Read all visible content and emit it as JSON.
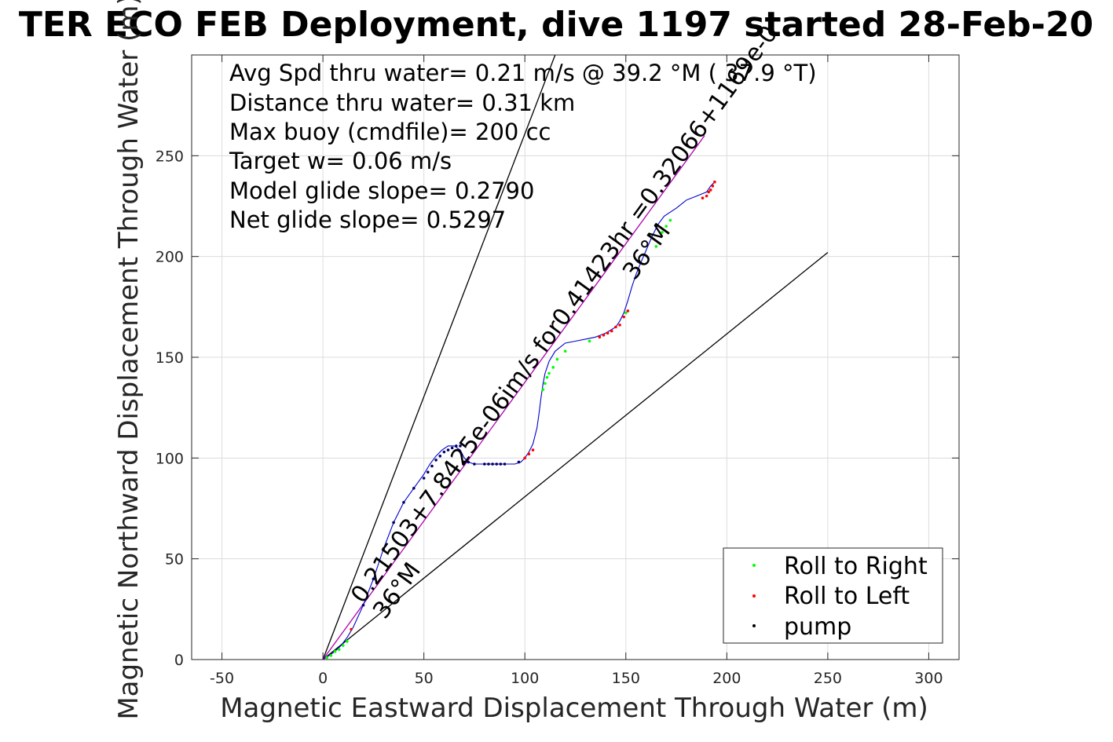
{
  "chart_data": {
    "type": "scatter",
    "title": "TER ECO FEB Deployment, dive 1197 started 28-Feb-20",
    "xlabel": "Magnetic Eastward Displacement Through Water (m)",
    "ylabel": "Magnetic Northward Displacement Through Water (m)",
    "xlim": [
      -65,
      315
    ],
    "ylim": [
      0,
      300
    ],
    "xticks": [
      -50,
      0,
      50,
      100,
      150,
      200,
      250,
      300
    ],
    "yticks": [
      0,
      50,
      100,
      150,
      200,
      250
    ],
    "grid": true,
    "legend_placement": "bottom-right",
    "legend": [
      {
        "label": "Roll to Right",
        "color": "#00ff00"
      },
      {
        "label": "Roll to Left",
        "color": "#ff0000"
      },
      {
        "label": "pump",
        "color": "#000000"
      }
    ],
    "stats": [
      "Avg Spd thru water=  0.21 m/s @  39.2 °M ( 37.9 °T)",
      "Distance thru water=  0.31 km",
      "Max buoy (cmdfile)= 200 cc",
      "Target w= 0.06 m/s",
      "Model glide slope= 0.2790",
      "Net glide slope= 0.5297"
    ],
    "annotations": {
      "start_heading": "36°M",
      "start_speed": "0.21503+7.8425e-06im/s for0.41423hr =0.32066+1169e-0",
      "end_heading": "36°M"
    },
    "reference_lines": [
      {
        "name": "upper",
        "x": [
          0,
          115
        ],
        "y": [
          0,
          300
        ],
        "color": "#000000"
      },
      {
        "name": "lower",
        "x": [
          0,
          250
        ],
        "y": [
          0,
          202
        ],
        "color": "#000000"
      },
      {
        "name": "average",
        "x": [
          0,
          189
        ],
        "y": [
          0,
          260
        ],
        "color": "#b000b0"
      }
    ],
    "track": {
      "color": "#0000cc",
      "x": [
        0,
        3,
        6,
        9,
        12,
        15,
        20,
        25,
        30,
        35,
        40,
        45,
        50,
        53,
        56,
        59,
        62,
        65,
        68,
        70,
        72,
        75,
        80,
        85,
        90,
        95,
        98,
        100,
        102,
        104,
        106,
        107,
        108,
        109,
        110,
        112,
        115,
        120,
        125,
        130,
        135,
        140,
        145,
        147,
        149,
        151,
        153,
        155,
        157,
        160,
        163,
        166,
        169,
        172,
        175,
        180,
        185,
        190,
        192,
        194
      ],
      "y": [
        0,
        2,
        4,
        7,
        11,
        16,
        27,
        40,
        55,
        68,
        78,
        85,
        92,
        97,
        101,
        104,
        106,
        106,
        104,
        100,
        98,
        97,
        97,
        97,
        97,
        97,
        98,
        100,
        103,
        107,
        115,
        122,
        130,
        137,
        142,
        148,
        153,
        157,
        158,
        159,
        160,
        162,
        165,
        168,
        172,
        178,
        185,
        191,
        196,
        203,
        210,
        216,
        220,
        222,
        224,
        228,
        230,
        232,
        235,
        237
      ]
    },
    "points_pump": {
      "x": [
        20,
        25,
        30,
        35,
        40,
        45,
        50,
        52,
        54,
        56,
        58,
        60,
        62,
        64,
        66,
        68,
        70,
        72,
        75,
        80,
        82,
        84,
        86,
        88,
        90,
        97
      ],
      "y": [
        27,
        40,
        55,
        68,
        78,
        85,
        90,
        93,
        96,
        99,
        101,
        103,
        104,
        105,
        106,
        106,
        98,
        98,
        97,
        97,
        97,
        97,
        97,
        97,
        97,
        98
      ],
      "color": "#000066"
    },
    "points_roll_right": {
      "x": [
        2,
        4,
        6,
        8,
        10,
        12,
        109,
        110,
        111,
        112,
        114,
        116,
        120,
        132,
        150,
        165,
        168,
        170,
        172
      ],
      "y": [
        1,
        2,
        4,
        5,
        7,
        9,
        134,
        137,
        140,
        142,
        145,
        149,
        153,
        158,
        172,
        205,
        212,
        215,
        218
      ],
      "color": "#00ff00"
    },
    "points_roll_left": {
      "x": [
        14,
        100,
        102,
        104,
        137,
        139,
        141,
        143,
        145,
        147,
        149,
        151,
        188,
        190,
        191,
        192,
        193,
        194
      ],
      "y": [
        15,
        100,
        102,
        104,
        160,
        161,
        162,
        163,
        165,
        166,
        170,
        173,
        229,
        230,
        232,
        233,
        235,
        237
      ],
      "color": "#ff0000"
    }
  }
}
